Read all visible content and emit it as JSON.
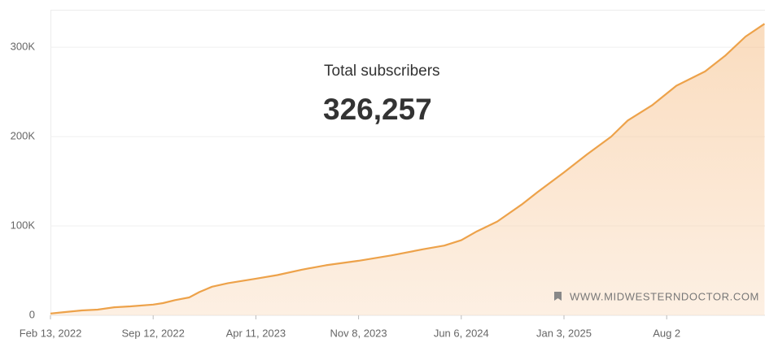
{
  "chart_data": {
    "type": "area",
    "title": "Total subscribers",
    "subtitle": "326,257",
    "annotation": "WWW.MIDWESTERNDOCTOR.COM",
    "color": "#eda24a",
    "x": [
      "2022-02-13",
      "2022-03-15",
      "2022-04-18",
      "2022-05-21",
      "2022-06-24",
      "2022-07-27",
      "2022-09-12",
      "2022-10-02",
      "2022-10-27",
      "2022-11-25",
      "2022-12-16",
      "2023-01-11",
      "2023-02-13",
      "2023-04-11",
      "2023-05-25",
      "2023-07-14",
      "2023-09-02",
      "2023-11-08",
      "2024-01-14",
      "2024-03-21",
      "2024-05-02",
      "2024-06-06",
      "2024-07-08",
      "2024-08-19",
      "2024-10-08",
      "2024-11-10",
      "2025-01-03",
      "2025-02-19",
      "2025-04-10",
      "2025-05-14",
      "2025-07-03",
      "2025-08-22",
      "2025-10-20",
      "2025-12-01",
      "2026-01-11",
      "2026-02-19"
    ],
    "values": [
      2000,
      3600,
      5500,
      6400,
      9000,
      10000,
      12000,
      13600,
      17000,
      20000,
      26000,
      32000,
      36000,
      41000,
      45000,
      51000,
      56000,
      61000,
      67000,
      74000,
      78000,
      84000,
      94000,
      105000,
      124000,
      138000,
      160000,
      180000,
      200000,
      218000,
      235000,
      257000,
      273000,
      291000,
      312000,
      326257
    ],
    "xlim": [
      "2022-02-13",
      "2026-02-20"
    ],
    "xticks": [
      {
        "value": "2022-02-13",
        "label": "Feb 13, 2022"
      },
      {
        "value": "2022-09-12",
        "label": "Sep 12, 2022"
      },
      {
        "value": "2023-04-11",
        "label": "Apr 11, 2023"
      },
      {
        "value": "2023-11-08",
        "label": "Nov 8, 2023"
      },
      {
        "value": "2024-06-06",
        "label": "Jun 6, 2024"
      },
      {
        "value": "2025-01-03",
        "label": "Jan 3, 2025"
      },
      {
        "value": "2025-08-02",
        "label": "Aug 2"
      }
    ],
    "ylim": [
      0,
      342000
    ],
    "yticks": [
      0,
      {
        "value": 100000,
        "label": "100K"
      },
      {
        "value": 200000,
        "label": "200K"
      },
      {
        "value": 300000,
        "label": "300K"
      }
    ],
    "grid": true
  }
}
